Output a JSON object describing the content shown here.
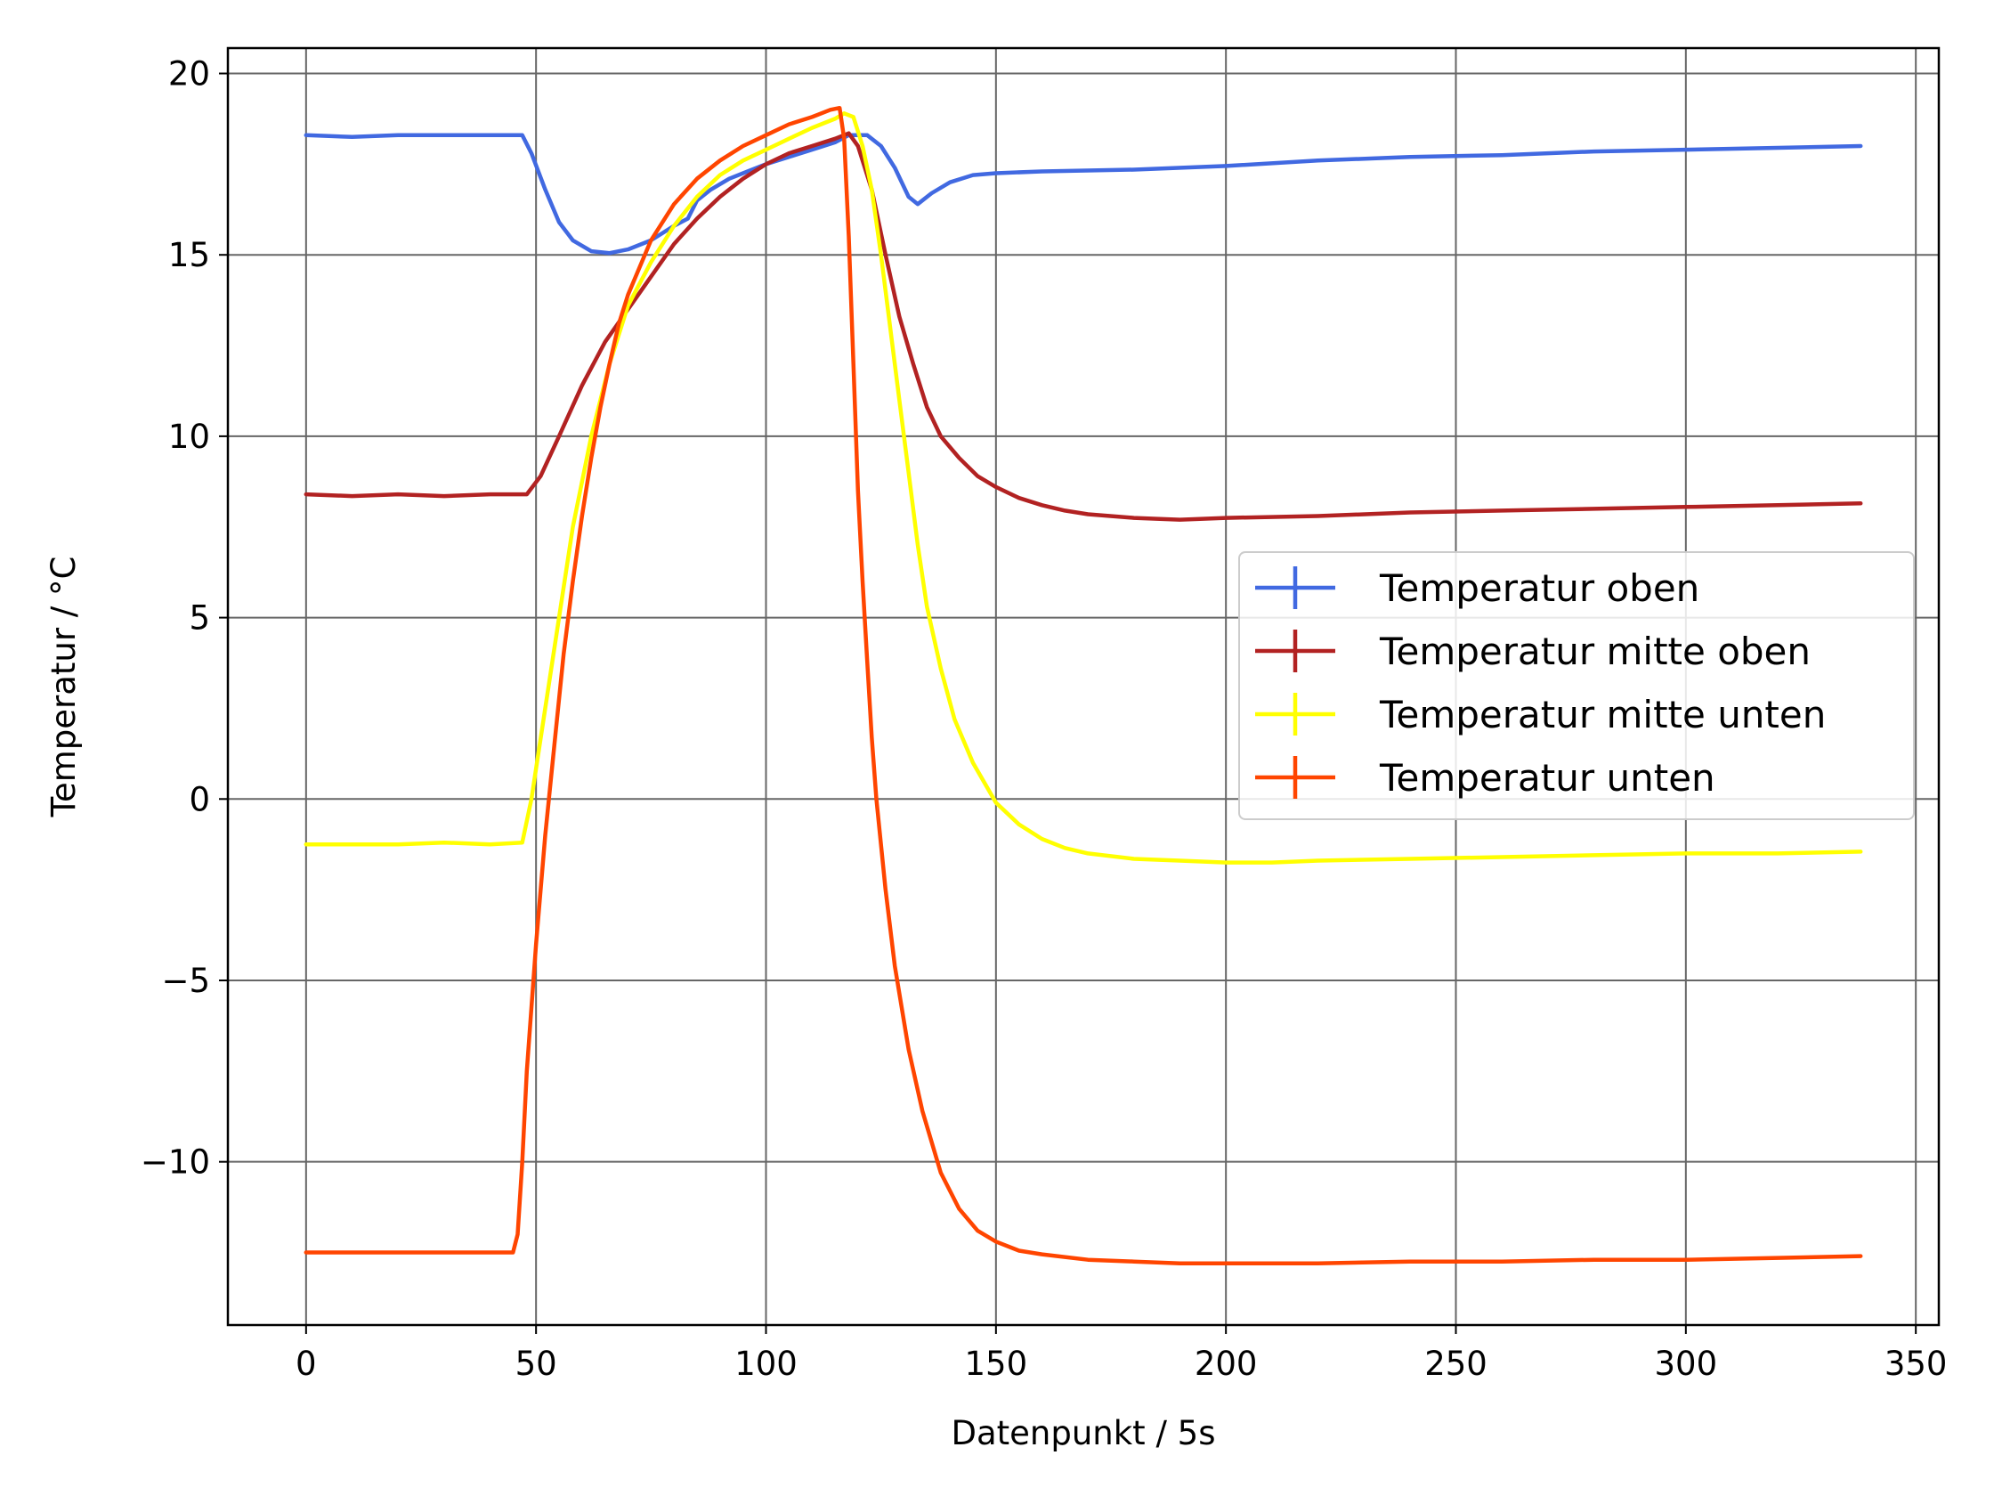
{
  "chart_data": {
    "type": "line",
    "title": "",
    "xlabel": "Datenpunkt / 5s",
    "ylabel": "Temperatur / °C",
    "xlim": [
      -17,
      355
    ],
    "ylim": [
      -14.5,
      20.7
    ],
    "xticks": [
      0,
      50,
      100,
      150,
      200,
      250,
      300,
      350
    ],
    "yticks": [
      20,
      15,
      10,
      5,
      0,
      -5,
      -10
    ],
    "xtick_labels": [
      "0",
      "50",
      "100",
      "150",
      "200",
      "250",
      "300",
      "350"
    ],
    "ytick_labels": [
      "20",
      "15",
      "10",
      "5",
      "0",
      "−5",
      "−10"
    ],
    "grid": true,
    "legend_position": "center-right",
    "series": [
      {
        "name": "Temperatur oben",
        "color": "#4169E1",
        "points": [
          [
            0,
            18.3
          ],
          [
            10,
            18.25
          ],
          [
            20,
            18.3
          ],
          [
            30,
            18.3
          ],
          [
            40,
            18.3
          ],
          [
            47,
            18.3
          ],
          [
            49,
            17.8
          ],
          [
            52,
            16.8
          ],
          [
            55,
            15.9
          ],
          [
            58,
            15.4
          ],
          [
            62,
            15.1
          ],
          [
            66,
            15.05
          ],
          [
            70,
            15.15
          ],
          [
            75,
            15.4
          ],
          [
            80,
            15.8
          ],
          [
            83,
            16.0
          ],
          [
            85,
            16.5
          ],
          [
            88,
            16.8
          ],
          [
            92,
            17.1
          ],
          [
            96,
            17.3
          ],
          [
            100,
            17.5
          ],
          [
            105,
            17.7
          ],
          [
            110,
            17.9
          ],
          [
            115,
            18.1
          ],
          [
            118,
            18.3
          ],
          [
            122,
            18.3
          ],
          [
            125,
            18.0
          ],
          [
            128,
            17.4
          ],
          [
            131,
            16.6
          ],
          [
            133,
            16.4
          ],
          [
            136,
            16.7
          ],
          [
            140,
            17.0
          ],
          [
            145,
            17.2
          ],
          [
            150,
            17.25
          ],
          [
            160,
            17.3
          ],
          [
            180,
            17.35
          ],
          [
            200,
            17.45
          ],
          [
            220,
            17.6
          ],
          [
            240,
            17.7
          ],
          [
            260,
            17.75
          ],
          [
            280,
            17.85
          ],
          [
            300,
            17.9
          ],
          [
            320,
            17.95
          ],
          [
            338,
            18.0
          ]
        ]
      },
      {
        "name": "Temperatur mitte oben",
        "color": "#B22222",
        "points": [
          [
            0,
            8.4
          ],
          [
            10,
            8.35
          ],
          [
            20,
            8.4
          ],
          [
            30,
            8.35
          ],
          [
            40,
            8.4
          ],
          [
            48,
            8.4
          ],
          [
            51,
            8.9
          ],
          [
            55,
            10.0
          ],
          [
            60,
            11.4
          ],
          [
            65,
            12.6
          ],
          [
            70,
            13.5
          ],
          [
            75,
            14.4
          ],
          [
            80,
            15.3
          ],
          [
            85,
            16.0
          ],
          [
            90,
            16.6
          ],
          [
            95,
            17.1
          ],
          [
            100,
            17.5
          ],
          [
            105,
            17.8
          ],
          [
            110,
            18.0
          ],
          [
            115,
            18.2
          ],
          [
            118,
            18.35
          ],
          [
            120,
            18.0
          ],
          [
            123,
            16.8
          ],
          [
            126,
            15.0
          ],
          [
            129,
            13.3
          ],
          [
            132,
            12.0
          ],
          [
            135,
            10.8
          ],
          [
            138,
            10.0
          ],
          [
            142,
            9.4
          ],
          [
            146,
            8.9
          ],
          [
            150,
            8.6
          ],
          [
            155,
            8.3
          ],
          [
            160,
            8.1
          ],
          [
            165,
            7.95
          ],
          [
            170,
            7.85
          ],
          [
            180,
            7.75
          ],
          [
            190,
            7.7
          ],
          [
            200,
            7.75
          ],
          [
            220,
            7.8
          ],
          [
            240,
            7.9
          ],
          [
            260,
            7.95
          ],
          [
            280,
            8.0
          ],
          [
            300,
            8.05
          ],
          [
            320,
            8.1
          ],
          [
            338,
            8.15
          ]
        ]
      },
      {
        "name": "Temperatur mitte unten",
        "color": "#FFFF00",
        "points": [
          [
            0,
            -1.25
          ],
          [
            10,
            -1.25
          ],
          [
            20,
            -1.25
          ],
          [
            30,
            -1.2
          ],
          [
            40,
            -1.25
          ],
          [
            47,
            -1.2
          ],
          [
            49,
            0.0
          ],
          [
            52,
            2.5
          ],
          [
            55,
            5.0
          ],
          [
            58,
            7.5
          ],
          [
            62,
            10.0
          ],
          [
            66,
            12.0
          ],
          [
            70,
            13.6
          ],
          [
            75,
            14.8
          ],
          [
            80,
            15.8
          ],
          [
            85,
            16.6
          ],
          [
            90,
            17.2
          ],
          [
            95,
            17.6
          ],
          [
            100,
            17.9
          ],
          [
            105,
            18.2
          ],
          [
            110,
            18.5
          ],
          [
            115,
            18.75
          ],
          [
            117,
            18.9
          ],
          [
            119,
            18.8
          ],
          [
            121,
            18.0
          ],
          [
            123,
            16.8
          ],
          [
            125,
            15.0
          ],
          [
            127,
            13.0
          ],
          [
            129,
            11.0
          ],
          [
            131,
            9.0
          ],
          [
            133,
            7.0
          ],
          [
            135,
            5.3
          ],
          [
            138,
            3.6
          ],
          [
            141,
            2.2
          ],
          [
            145,
            1.0
          ],
          [
            150,
            -0.1
          ],
          [
            155,
            -0.7
          ],
          [
            160,
            -1.1
          ],
          [
            165,
            -1.35
          ],
          [
            170,
            -1.5
          ],
          [
            180,
            -1.65
          ],
          [
            190,
            -1.7
          ],
          [
            200,
            -1.75
          ],
          [
            210,
            -1.75
          ],
          [
            220,
            -1.7
          ],
          [
            240,
            -1.65
          ],
          [
            260,
            -1.6
          ],
          [
            280,
            -1.55
          ],
          [
            300,
            -1.5
          ],
          [
            320,
            -1.5
          ],
          [
            338,
            -1.45
          ]
        ]
      },
      {
        "name": "Temperatur unten",
        "color": "#FF4500",
        "points": [
          [
            0,
            -12.5
          ],
          [
            10,
            -12.5
          ],
          [
            20,
            -12.5
          ],
          [
            30,
            -12.5
          ],
          [
            40,
            -12.5
          ],
          [
            45,
            -12.5
          ],
          [
            46,
            -12.0
          ],
          [
            47,
            -10.0
          ],
          [
            48,
            -7.5
          ],
          [
            50,
            -4.0
          ],
          [
            52,
            -1.0
          ],
          [
            54,
            1.5
          ],
          [
            56,
            4.0
          ],
          [
            58,
            6.0
          ],
          [
            60,
            7.8
          ],
          [
            62,
            9.4
          ],
          [
            64,
            10.8
          ],
          [
            66,
            12.0
          ],
          [
            68,
            13.1
          ],
          [
            70,
            13.9
          ],
          [
            75,
            15.4
          ],
          [
            80,
            16.4
          ],
          [
            85,
            17.1
          ],
          [
            90,
            17.6
          ],
          [
            95,
            18.0
          ],
          [
            100,
            18.3
          ],
          [
            105,
            18.6
          ],
          [
            110,
            18.8
          ],
          [
            114,
            19.0
          ],
          [
            116,
            19.05
          ],
          [
            117,
            18.2
          ],
          [
            118,
            15.5
          ],
          [
            119,
            12.0
          ],
          [
            120,
            8.5
          ],
          [
            121,
            6.0
          ],
          [
            122,
            3.8
          ],
          [
            123,
            1.7
          ],
          [
            124,
            0.0
          ],
          [
            126,
            -2.5
          ],
          [
            128,
            -4.6
          ],
          [
            131,
            -6.9
          ],
          [
            134,
            -8.6
          ],
          [
            138,
            -10.3
          ],
          [
            142,
            -11.3
          ],
          [
            146,
            -11.9
          ],
          [
            150,
            -12.2
          ],
          [
            155,
            -12.45
          ],
          [
            160,
            -12.55
          ],
          [
            170,
            -12.7
          ],
          [
            180,
            -12.75
          ],
          [
            190,
            -12.8
          ],
          [
            200,
            -12.8
          ],
          [
            220,
            -12.8
          ],
          [
            240,
            -12.75
          ],
          [
            260,
            -12.75
          ],
          [
            280,
            -12.7
          ],
          [
            300,
            -12.7
          ],
          [
            320,
            -12.65
          ],
          [
            338,
            -12.6
          ]
        ]
      }
    ]
  }
}
